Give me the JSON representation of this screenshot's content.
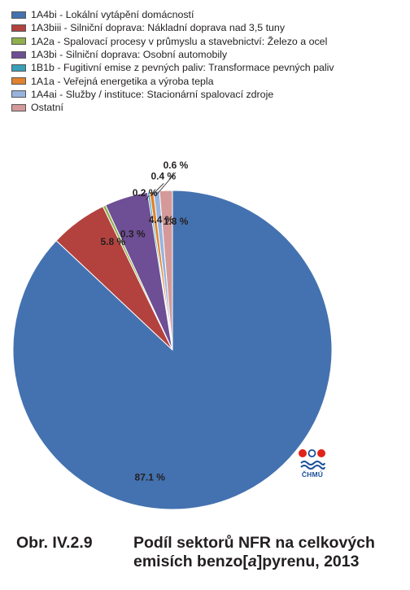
{
  "chart_data": {
    "type": "pie",
    "start_angle_deg": 0,
    "direction": "clockwise",
    "legend_position": "top-left",
    "series": [
      {
        "name": "1A4bi - Lokální vytápění domácností",
        "value": 87.1,
        "label": "87.1 %",
        "color": "#4472b0"
      },
      {
        "name": "1A3biii - Silniční doprava: Nákladní doprava nad 3,5 tuny",
        "value": 5.8,
        "label": "5.8 %",
        "color": "#b3423f"
      },
      {
        "name": "1A2a - Spalovací procesy v průmyslu a stavebnictví: Železo a ocel",
        "value": 0.3,
        "label": "0.3 %",
        "color": "#8fb04c"
      },
      {
        "name": "1A3bi - Silniční doprava: Osobní automobily",
        "value": 4.4,
        "label": "4.4 %",
        "color": "#6e4e94"
      },
      {
        "name": "1B1b - Fugitivní emise z pevných paliv: Transformace pevných paliv",
        "value": 0.2,
        "label": "0.2 %",
        "color": "#3a9fb8"
      },
      {
        "name": "1A1a - Veřejná energetika a výroba tepla",
        "value": 0.4,
        "label": "0.4 %",
        "color": "#e0822e"
      },
      {
        "name": "1A4ai - Služby / instituce: Stacionární spalovací zdroje",
        "value": 0.6,
        "label": "0.6 %",
        "color": "#98b3dd"
      },
      {
        "name": "Ostatní",
        "value": 1.3,
        "label": "1.3 %",
        "color": "#d49a9a"
      }
    ]
  },
  "logo": {
    "text": "ČHMÚ"
  },
  "caption": {
    "number": "Obr. IV.2.9",
    "line1": "Podíl sektorů NFR na celkových",
    "line2_prefix": "emisích benzo[",
    "line2_italic": "a",
    "line2_suffix": "]pyrenu, 2013"
  }
}
